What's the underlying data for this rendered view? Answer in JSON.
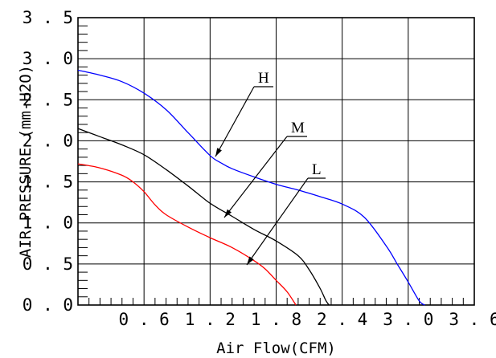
{
  "chart_data": {
    "type": "line",
    "xlabel": "Air Flow(CFM)",
    "ylabel": "AIR PRESSURE (mm-H2O)",
    "xlim": [
      0,
      3.6
    ],
    "ylim": [
      0,
      3.5
    ],
    "x_ticks": [
      "0.6",
      "1.2",
      "1.8",
      "2.4",
      "3.0",
      "3.6"
    ],
    "y_ticks": [
      "0.0",
      "0.5",
      "1.0",
      "1.5",
      "2.0",
      "2.5",
      "3.0",
      "3.5"
    ],
    "grid": true,
    "series": [
      {
        "name": "H",
        "color": "#0000ff",
        "x": [
          0,
          0.2,
          0.4,
          0.6,
          0.8,
          1.0,
          1.2,
          1.3,
          1.4,
          1.6,
          1.8,
          2.0,
          2.2,
          2.4,
          2.6,
          2.8,
          2.9,
          3.0,
          3.1,
          3.15
        ],
        "y": [
          2.86,
          2.8,
          2.72,
          2.58,
          2.38,
          2.1,
          1.82,
          1.73,
          1.66,
          1.56,
          1.47,
          1.4,
          1.32,
          1.23,
          1.07,
          0.72,
          0.5,
          0.28,
          0.05,
          0
        ]
      },
      {
        "name": "M",
        "color": "#000000",
        "x": [
          0,
          0.2,
          0.4,
          0.6,
          0.8,
          1.0,
          1.2,
          1.4,
          1.6,
          1.8,
          2.0,
          2.1,
          2.2,
          2.25,
          2.28
        ],
        "y": [
          2.15,
          2.05,
          1.95,
          1.83,
          1.65,
          1.45,
          1.24,
          1.08,
          0.92,
          0.78,
          0.6,
          0.43,
          0.2,
          0.06,
          0
        ]
      },
      {
        "name": "L",
        "color": "#ff0000",
        "x": [
          0,
          0.2,
          0.4,
          0.5,
          0.6,
          0.7,
          0.8,
          1.0,
          1.2,
          1.4,
          1.6,
          1.7,
          1.8,
          1.9,
          1.98
        ],
        "y": [
          1.72,
          1.67,
          1.58,
          1.5,
          1.38,
          1.22,
          1.1,
          0.95,
          0.82,
          0.7,
          0.54,
          0.44,
          0.3,
          0.16,
          0
        ]
      }
    ],
    "labels": [
      {
        "series": "H",
        "text": "H"
      },
      {
        "series": "M",
        "text": "M"
      },
      {
        "series": "L",
        "text": "L"
      }
    ]
  }
}
